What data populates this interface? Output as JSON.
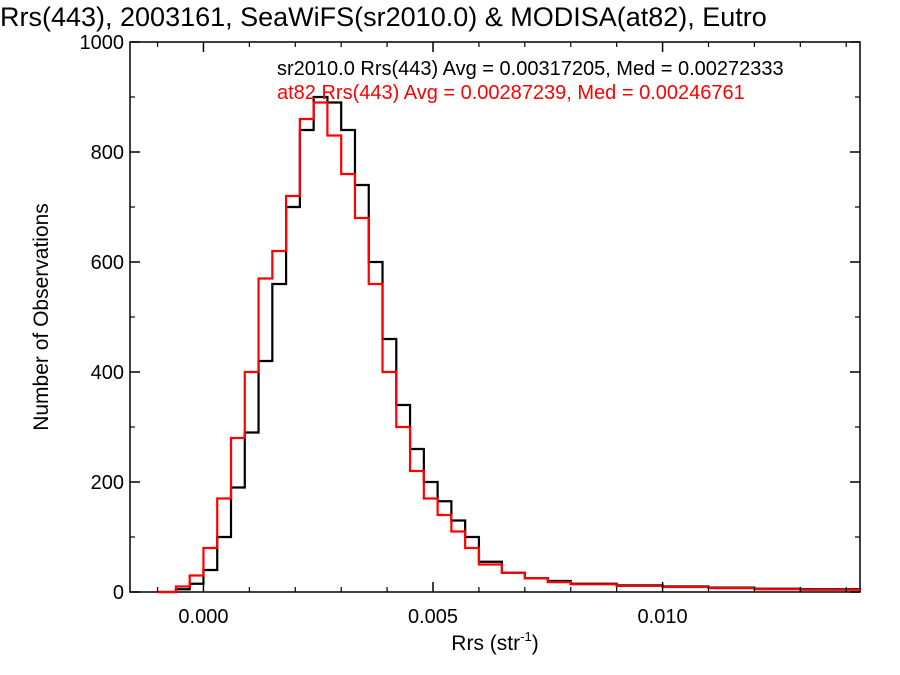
{
  "chart_data": {
    "type": "line",
    "title": "Rrs(443), 2003161, SeaWiFS(sr2010.0) & MODISA(at82), Eutro",
    "xlabel": "Rrs (str",
    "xlabel_sup": "-1",
    "xlabel_close": ")",
    "ylabel": "Number of Observations",
    "xlim": [
      -0.0016,
      0.0143
    ],
    "ylim": [
      0,
      1000
    ],
    "x_ticks": [
      0.0,
      0.005,
      0.01
    ],
    "x_tick_labels": [
      "0.000",
      "0.005",
      "0.010"
    ],
    "y_ticks": [
      0,
      200,
      400,
      600,
      800,
      1000
    ],
    "y_tick_labels": [
      "0",
      "200",
      "400",
      "600",
      "800",
      "1000"
    ],
    "grid": false,
    "legend_position": "top-right",
    "series": [
      {
        "name": "sr2010.0",
        "label": "sr2010.0 Rrs(443) Avg = 0.00317205, Med = 0.00272333",
        "color": "#000000",
        "x": [
          -0.001,
          -0.0006,
          -0.0003,
          0.0,
          0.0003,
          0.0006,
          0.0009,
          0.0012,
          0.0015,
          0.0018,
          0.0021,
          0.0024,
          0.0027,
          0.003,
          0.0033,
          0.0036,
          0.0039,
          0.0042,
          0.0045,
          0.0048,
          0.0051,
          0.0054,
          0.0057,
          0.006,
          0.0065,
          0.007,
          0.0075,
          0.008,
          0.009,
          0.01,
          0.011,
          0.012,
          0.013,
          0.0143
        ],
        "y": [
          0,
          5,
          15,
          40,
          100,
          190,
          290,
          420,
          560,
          700,
          840,
          900,
          890,
          840,
          740,
          600,
          460,
          340,
          260,
          200,
          165,
          130,
          100,
          55,
          35,
          25,
          20,
          15,
          12,
          10,
          8,
          6,
          5,
          3
        ]
      },
      {
        "name": "at82",
        "label": "at82 Rrs(443) Avg = 0.00287239, Med = 0.00246761",
        "color": "#ff0000",
        "x": [
          -0.001,
          -0.0006,
          -0.0003,
          0.0,
          0.0003,
          0.0006,
          0.0009,
          0.0012,
          0.0015,
          0.0018,
          0.0021,
          0.0024,
          0.0027,
          0.003,
          0.0033,
          0.0036,
          0.0039,
          0.0042,
          0.0045,
          0.0048,
          0.0051,
          0.0054,
          0.0057,
          0.006,
          0.0065,
          0.007,
          0.0075,
          0.008,
          0.009,
          0.01,
          0.011,
          0.012,
          0.013,
          0.0143
        ],
        "y": [
          0,
          10,
          30,
          80,
          170,
          280,
          400,
          570,
          620,
          720,
          860,
          890,
          830,
          760,
          680,
          560,
          400,
          300,
          220,
          170,
          140,
          110,
          80,
          50,
          35,
          25,
          18,
          14,
          11,
          9,
          7,
          5,
          4,
          3
        ]
      }
    ]
  }
}
